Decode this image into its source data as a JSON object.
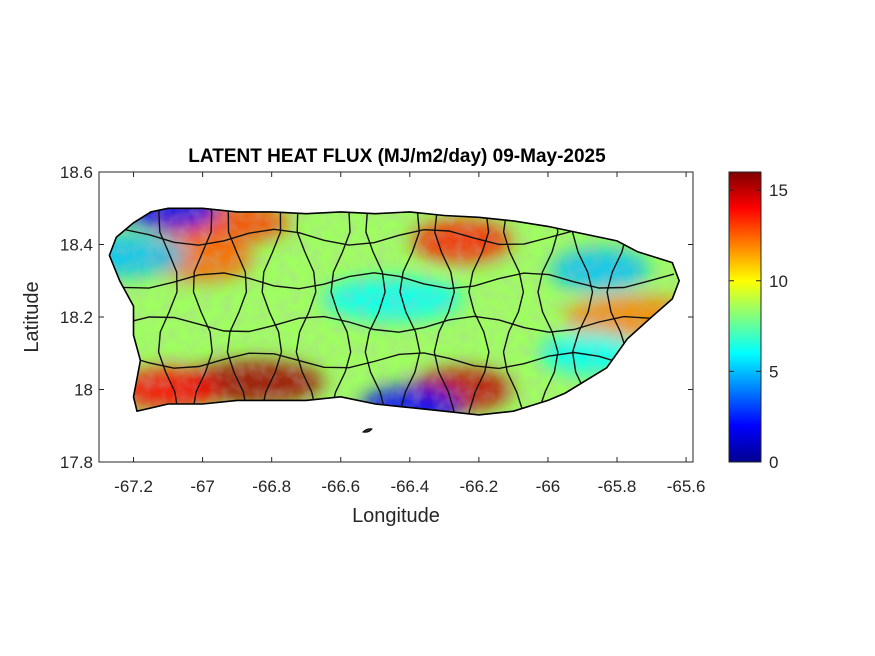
{
  "title": "LATENT HEAT FLUX (MJ/m2/day) 09-May-2025",
  "xlabel": "Longitude",
  "ylabel": "Latitude",
  "x_ticks": [
    "-67.2",
    "-67",
    "-66.8",
    "-66.6",
    "-66.4",
    "-66.2",
    "-66",
    "-65.8",
    "-65.6"
  ],
  "y_ticks": [
    "18.6",
    "18.4",
    "18.2",
    "18"
  ],
  "y_tick_bottom": "17.8",
  "colorbar_ticks": [
    "15",
    "10",
    "5",
    "0"
  ],
  "chart_data": {
    "type": "heatmap",
    "title": "LATENT HEAT FLUX (MJ/m2/day) 09-May-2025",
    "xlabel": "Longitude",
    "ylabel": "Latitude",
    "xlim": [
      -67.3,
      -65.58
    ],
    "ylim": [
      17.8,
      18.6
    ],
    "colorbar": {
      "colormap": "jet",
      "clim": [
        0,
        16
      ],
      "ticks": [
        0,
        5,
        10,
        15
      ]
    },
    "grid": false,
    "region": "Puerto Rico",
    "coastline_lonlat": [
      [
        -67.27,
        18.37
      ],
      [
        -67.25,
        18.42
      ],
      [
        -67.2,
        18.46
      ],
      [
        -67.15,
        18.49
      ],
      [
        -67.1,
        18.5
      ],
      [
        -67.0,
        18.5
      ],
      [
        -66.9,
        18.49
      ],
      [
        -66.8,
        18.49
      ],
      [
        -66.7,
        18.485
      ],
      [
        -66.6,
        18.49
      ],
      [
        -66.5,
        18.485
      ],
      [
        -66.4,
        18.49
      ],
      [
        -66.3,
        18.48
      ],
      [
        -66.2,
        18.475
      ],
      [
        -66.1,
        18.465
      ],
      [
        -66.0,
        18.45
      ],
      [
        -65.9,
        18.43
      ],
      [
        -65.8,
        18.41
      ],
      [
        -65.74,
        18.38
      ],
      [
        -65.64,
        18.35
      ],
      [
        -65.62,
        18.3
      ],
      [
        -65.64,
        18.25
      ],
      [
        -65.7,
        18.2
      ],
      [
        -65.77,
        18.14
      ],
      [
        -65.83,
        18.06
      ],
      [
        -65.95,
        17.99
      ],
      [
        -66.0,
        17.97
      ],
      [
        -66.1,
        17.94
      ],
      [
        -66.2,
        17.93
      ],
      [
        -66.3,
        17.94
      ],
      [
        -66.4,
        17.95
      ],
      [
        -66.5,
        17.96
      ],
      [
        -66.6,
        17.98
      ],
      [
        -66.7,
        17.97
      ],
      [
        -66.8,
        17.97
      ],
      [
        -66.9,
        17.97
      ],
      [
        -67.0,
        17.96
      ],
      [
        -67.1,
        17.96
      ],
      [
        -67.19,
        17.94
      ],
      [
        -67.2,
        17.98
      ],
      [
        -67.18,
        18.08
      ],
      [
        -67.2,
        18.15
      ],
      [
        -67.2,
        18.23
      ],
      [
        -67.24,
        18.3
      ]
    ],
    "high_flux_zones": [
      {
        "lon": -66.85,
        "lat": 18.02,
        "value": 15.5
      },
      {
        "lon": -66.25,
        "lat": 18.0,
        "value": 15
      },
      {
        "lon": -66.25,
        "lat": 18.41,
        "value": 13.5
      },
      {
        "lon": -66.95,
        "lat": 18.46,
        "value": 13
      },
      {
        "lon": -67.0,
        "lat": 18.36,
        "value": 12.5
      },
      {
        "lon": -67.1,
        "lat": 18.0,
        "value": 14
      },
      {
        "lon": -65.75,
        "lat": 18.2,
        "value": 12
      }
    ],
    "low_flux_zones": [
      {
        "lon": -67.1,
        "lat": 18.5,
        "value": 2
      },
      {
        "lon": -65.85,
        "lat": 18.33,
        "value": 5
      },
      {
        "lon": -66.45,
        "lat": 18.25,
        "value": 6
      },
      {
        "lon": -66.4,
        "lat": 17.95,
        "value": 2
      },
      {
        "lon": -65.88,
        "lat": 18.1,
        "value": 6
      },
      {
        "lon": -67.25,
        "lat": 18.37,
        "value": 5
      }
    ]
  }
}
